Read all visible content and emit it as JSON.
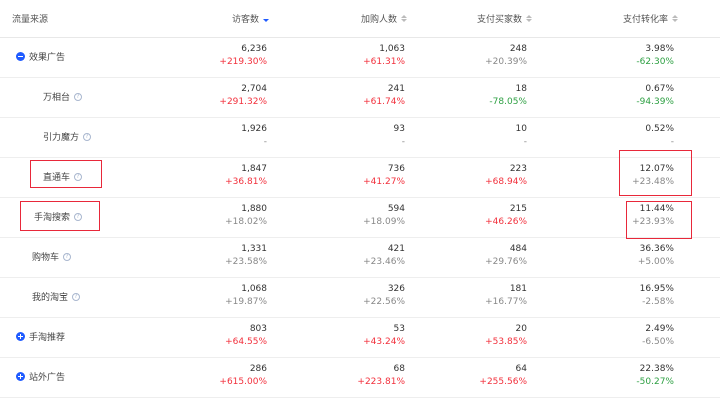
{
  "columns": {
    "source": "流量来源",
    "visitors": "访客数",
    "carts": "加购人数",
    "buyers": "支付买家数",
    "conversion": "支付转化率"
  },
  "colors": {
    "increase": "#f2303c",
    "decrease": "#2ea043",
    "accent": "#1f5bff",
    "highlight_box": "#e8283a"
  },
  "rows": [
    {
      "label": "效果广告",
      "visitors": "6,236",
      "visitors_change": "+219.30%",
      "carts": "1,063",
      "carts_change": "+61.31%",
      "buyers": "248",
      "buyers_change": "+20.39%",
      "conversion": "3.98%",
      "conversion_change": "-62.30%"
    },
    {
      "label": "万相台",
      "visitors": "2,704",
      "visitors_change": "+291.32%",
      "carts": "241",
      "carts_change": "+61.74%",
      "buyers": "18",
      "buyers_change": "-78.05%",
      "conversion": "0.67%",
      "conversion_change": "-94.39%"
    },
    {
      "label": "引力魔方",
      "visitors": "1,926",
      "visitors_change": "-",
      "carts": "93",
      "carts_change": "-",
      "buyers": "10",
      "buyers_change": "-",
      "conversion": "0.52%",
      "conversion_change": "-"
    },
    {
      "label": "直通车",
      "visitors": "1,847",
      "visitors_change": "+36.81%",
      "carts": "736",
      "carts_change": "+41.27%",
      "buyers": "223",
      "buyers_change": "+68.94%",
      "conversion": "12.07%",
      "conversion_change": "+23.48%"
    },
    {
      "label": "手淘搜索",
      "visitors": "1,880",
      "visitors_change": "+18.02%",
      "carts": "594",
      "carts_change": "+18.09%",
      "buyers": "215",
      "buyers_change": "+46.26%",
      "conversion": "11.44%",
      "conversion_change": "+23.93%"
    },
    {
      "label": "购物车",
      "visitors": "1,331",
      "visitors_change": "+23.58%",
      "carts": "421",
      "carts_change": "+23.46%",
      "buyers": "484",
      "buyers_change": "+29.76%",
      "conversion": "36.36%",
      "conversion_change": "+5.00%"
    },
    {
      "label": "我的淘宝",
      "visitors": "1,068",
      "visitors_change": "+19.87%",
      "carts": "326",
      "carts_change": "+22.56%",
      "buyers": "181",
      "buyers_change": "+16.77%",
      "conversion": "16.95%",
      "conversion_change": "-2.58%"
    },
    {
      "label": "手淘推荐",
      "visitors": "803",
      "visitors_change": "+64.55%",
      "carts": "53",
      "carts_change": "+43.24%",
      "buyers": "20",
      "buyers_change": "+53.85%",
      "conversion": "2.49%",
      "conversion_change": "-6.50%"
    },
    {
      "label": "站外广告",
      "visitors": "286",
      "visitors_change": "+615.00%",
      "carts": "68",
      "carts_change": "+223.81%",
      "buyers": "64",
      "buyers_change": "+255.56%",
      "conversion": "22.38%",
      "conversion_change": "-50.27%"
    }
  ]
}
